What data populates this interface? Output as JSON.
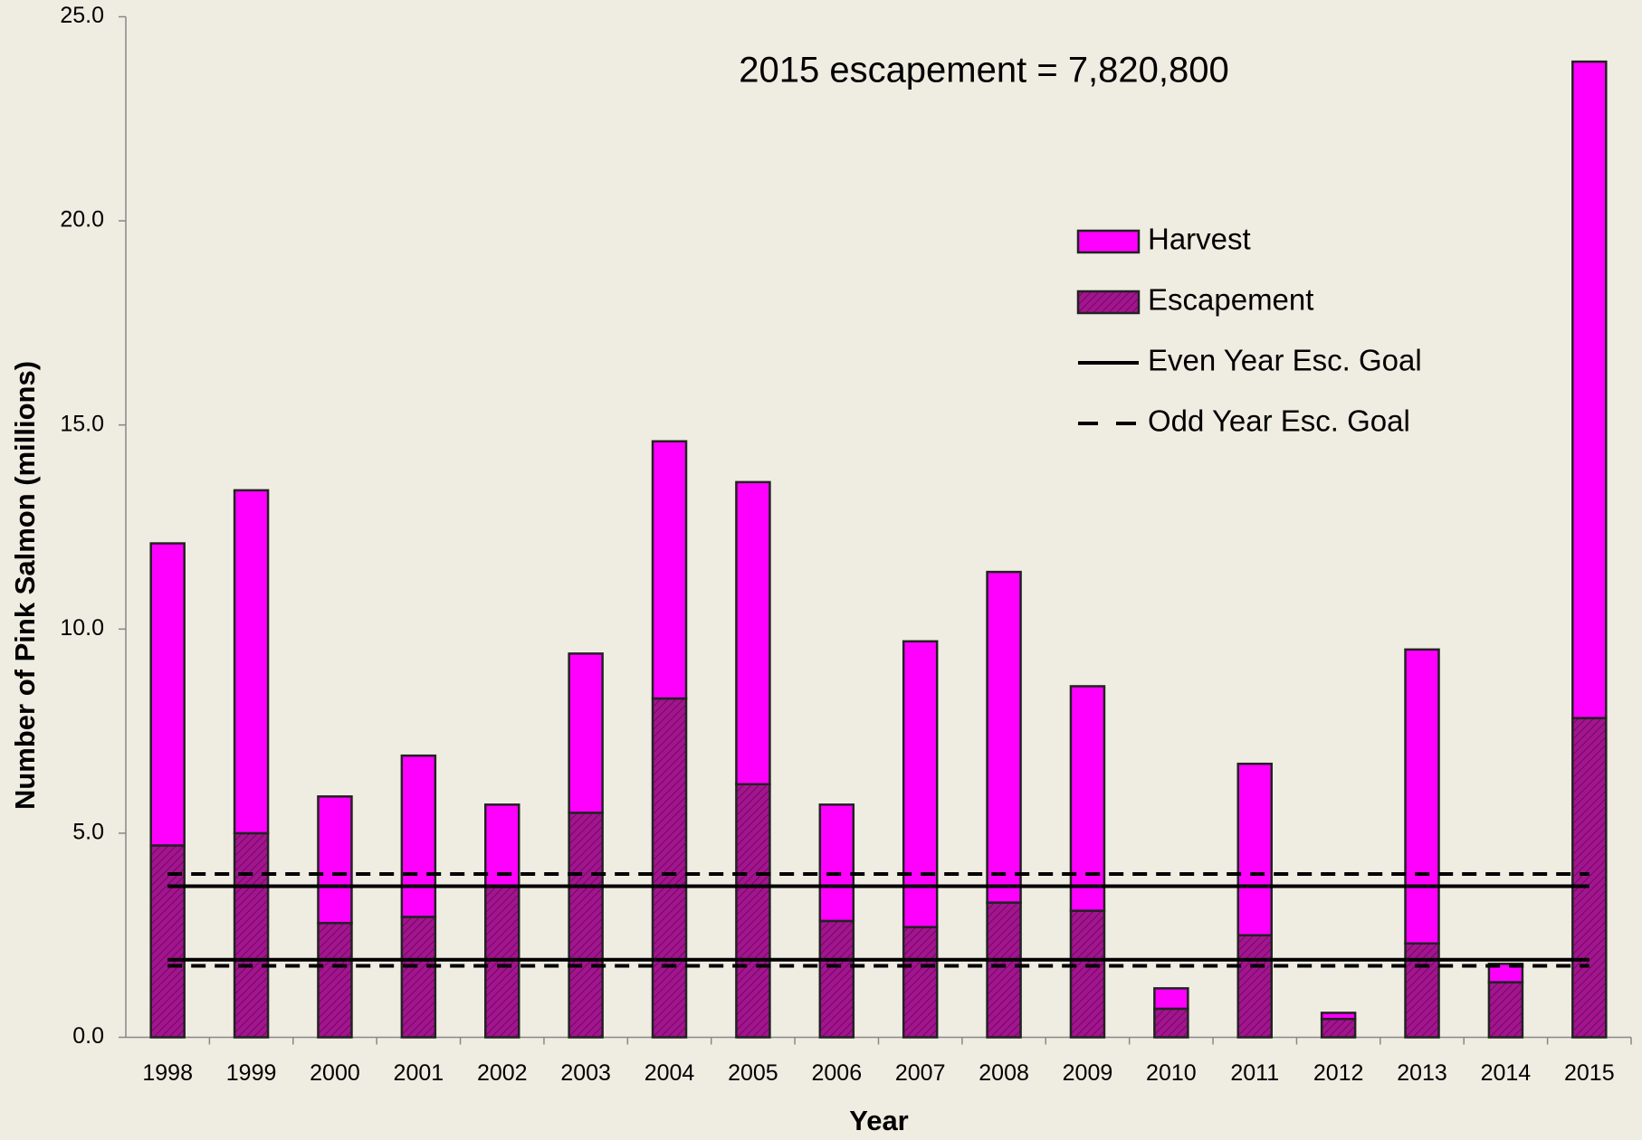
{
  "chart_data": {
    "type": "bar",
    "stacked": true,
    "annotation": "2015 escapement = 7,820,800",
    "x_label": "Year",
    "y_label": "Number of Pink Salmon (millions)",
    "categories": [
      "1998",
      "1999",
      "2000",
      "2001",
      "2002",
      "2003",
      "2004",
      "2005",
      "2006",
      "2007",
      "2008",
      "2009",
      "2010",
      "2011",
      "2012",
      "2013",
      "2014",
      "2015"
    ],
    "series": [
      {
        "name": "Escapement",
        "color": "#a3148f",
        "hatch": true,
        "values": [
          4.7,
          5.0,
          2.8,
          2.95,
          3.7,
          5.5,
          8.3,
          6.2,
          2.85,
          2.7,
          3.3,
          3.1,
          0.7,
          2.5,
          0.45,
          2.3,
          1.35,
          7.82
        ]
      },
      {
        "name": "Harvest",
        "color": "#ff00ff",
        "values": [
          7.4,
          8.4,
          3.1,
          3.95,
          2.0,
          3.9,
          6.3,
          7.4,
          2.85,
          7.0,
          8.1,
          5.5,
          0.5,
          4.2,
          0.15,
          7.2,
          0.45,
          16.08
        ]
      }
    ],
    "goal_lines": [
      {
        "name": "Even Year Esc. Goal",
        "style": "solid",
        "values": [
          1.9,
          3.7
        ]
      },
      {
        "name": "Odd Year Esc. Goal",
        "style": "dashed",
        "values": [
          1.75,
          4.0
        ]
      }
    ],
    "ylim": [
      0,
      25
    ],
    "yticks": [
      {
        "value": 0,
        "label": "0.0"
      },
      {
        "value": 5,
        "label": "5.0"
      },
      {
        "value": 10,
        "label": "10.0"
      },
      {
        "value": 15,
        "label": "15.0"
      },
      {
        "value": 20,
        "label": "20.0"
      },
      {
        "value": 25,
        "label": "25.0"
      }
    ],
    "legend_position": "upper right"
  }
}
